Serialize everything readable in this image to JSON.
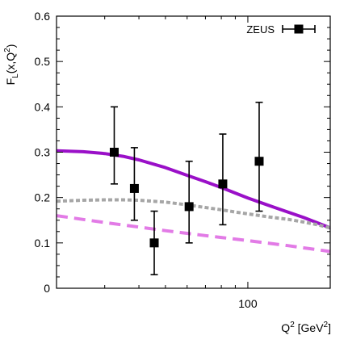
{
  "chart_data": {
    "type": "scatter",
    "xscale": "log",
    "xlim": [
      20,
      200
    ],
    "ylim": [
      0,
      0.6
    ],
    "x_ticks": [
      100
    ],
    "x_tick_labels": [
      "100"
    ],
    "y_ticks": [
      0,
      0.1,
      0.2,
      0.3,
      0.4,
      0.5,
      0.6
    ],
    "y_tick_labels": [
      "0",
      "0.1",
      "0.2",
      "0.3",
      "0.4",
      "0.5",
      "0.6"
    ],
    "xlabel": {
      "base": "Q",
      "sup": "2",
      "unit_open": " [GeV",
      "unit_sup": "2",
      "unit_close": "]"
    },
    "ylabel": {
      "pre": "F",
      "sub": "L",
      "mid": "(x,Q",
      "sup": "2",
      "post": ")"
    },
    "grid": false,
    "legend_position": "top-right",
    "data_series": {
      "name": "ZEUS",
      "color": "#000000",
      "marker": "square",
      "points": [
        {
          "x": 32.5,
          "y": 0.3,
          "err_low": 0.07,
          "err_high": 0.1
        },
        {
          "x": 38.5,
          "y": 0.22,
          "err_low": 0.07,
          "err_high": 0.09
        },
        {
          "x": 45.5,
          "y": 0.1,
          "err_low": 0.07,
          "err_high": 0.07
        },
        {
          "x": 61,
          "y": 0.18,
          "err_low": 0.08,
          "err_high": 0.1
        },
        {
          "x": 81,
          "y": 0.23,
          "err_low": 0.09,
          "err_high": 0.11
        },
        {
          "x": 110,
          "y": 0.28,
          "err_low": 0.11,
          "err_high": 0.13
        }
      ]
    },
    "curves": [
      {
        "color": "#9a10c8",
        "style": "solid",
        "x": [
          20,
          25,
          30,
          35,
          40,
          50,
          60,
          70,
          80,
          90,
          100,
          120,
          140,
          160,
          180,
          200
        ],
        "y": [
          0.303,
          0.301,
          0.297,
          0.291,
          0.283,
          0.266,
          0.249,
          0.235,
          0.222,
          0.21,
          0.199,
          0.182,
          0.168,
          0.156,
          0.144,
          0.133
        ]
      },
      {
        "color": "#a6a6a6",
        "style": "dotted",
        "x": [
          20,
          25,
          30,
          35,
          40,
          50,
          60,
          70,
          80,
          90,
          100,
          120,
          140,
          160,
          180,
          200
        ],
        "y": [
          0.192,
          0.194,
          0.195,
          0.195,
          0.194,
          0.19,
          0.184,
          0.178,
          0.173,
          0.168,
          0.164,
          0.157,
          0.152,
          0.146,
          0.14,
          0.133
        ]
      },
      {
        "color": "#e27be6",
        "style": "dashed",
        "x": [
          20,
          30,
          40,
          50,
          60,
          70,
          80,
          100,
          120,
          140,
          160,
          180,
          200
        ],
        "y": [
          0.16,
          0.145,
          0.135,
          0.127,
          0.121,
          0.116,
          0.112,
          0.105,
          0.099,
          0.094,
          0.089,
          0.085,
          0.081
        ]
      }
    ]
  }
}
